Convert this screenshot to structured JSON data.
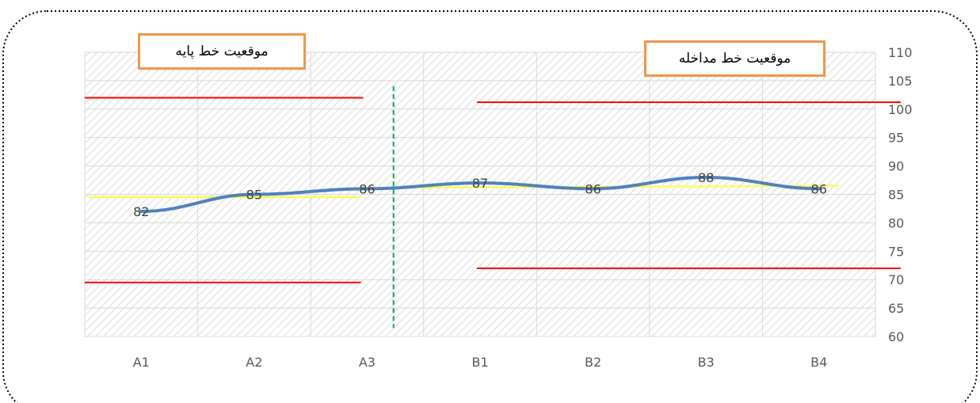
{
  "annotations": {
    "baseline_label": "موقعیت خط پایه",
    "intervention_label": "موقعیت خط مداخله"
  },
  "colors": {
    "series": "#4f81bd",
    "limit_lines": "#ff0000",
    "trend_lines": "#ffff33",
    "phase_line": "#00a651",
    "label_border": "#f0964b",
    "grid": "#d9d9d9"
  },
  "chart_data": {
    "type": "line",
    "categories": [
      "A1",
      "A2",
      "A3",
      "B1",
      "B2",
      "B3",
      "B4"
    ],
    "series": [
      {
        "values": [
          82,
          85,
          86,
          87,
          86,
          88,
          86
        ],
        "data_labels": [
          "82",
          "85",
          "86",
          "87",
          "86",
          "88",
          "86"
        ]
      }
    ],
    "ylim": [
      60,
      110
    ],
    "yticks": [
      60,
      65,
      70,
      75,
      80,
      85,
      90,
      95,
      100,
      105,
      110
    ],
    "y_axis_position": "right",
    "grid": true,
    "legend": "none",
    "phase_change_after": "A3",
    "phases": [
      {
        "name": "A",
        "categories": [
          "A1",
          "A2",
          "A3"
        ],
        "upper_limit": 102,
        "lower_limit": 69.5,
        "trend": [
          84.5,
          84.5
        ]
      },
      {
        "name": "B",
        "categories": [
          "B1",
          "B2",
          "B3",
          "B4"
        ],
        "upper_limit": 101.2,
        "lower_limit": 72,
        "trend": [
          86.2,
          86.5
        ]
      }
    ],
    "phase_line_range": [
      61.5,
      104
    ]
  }
}
